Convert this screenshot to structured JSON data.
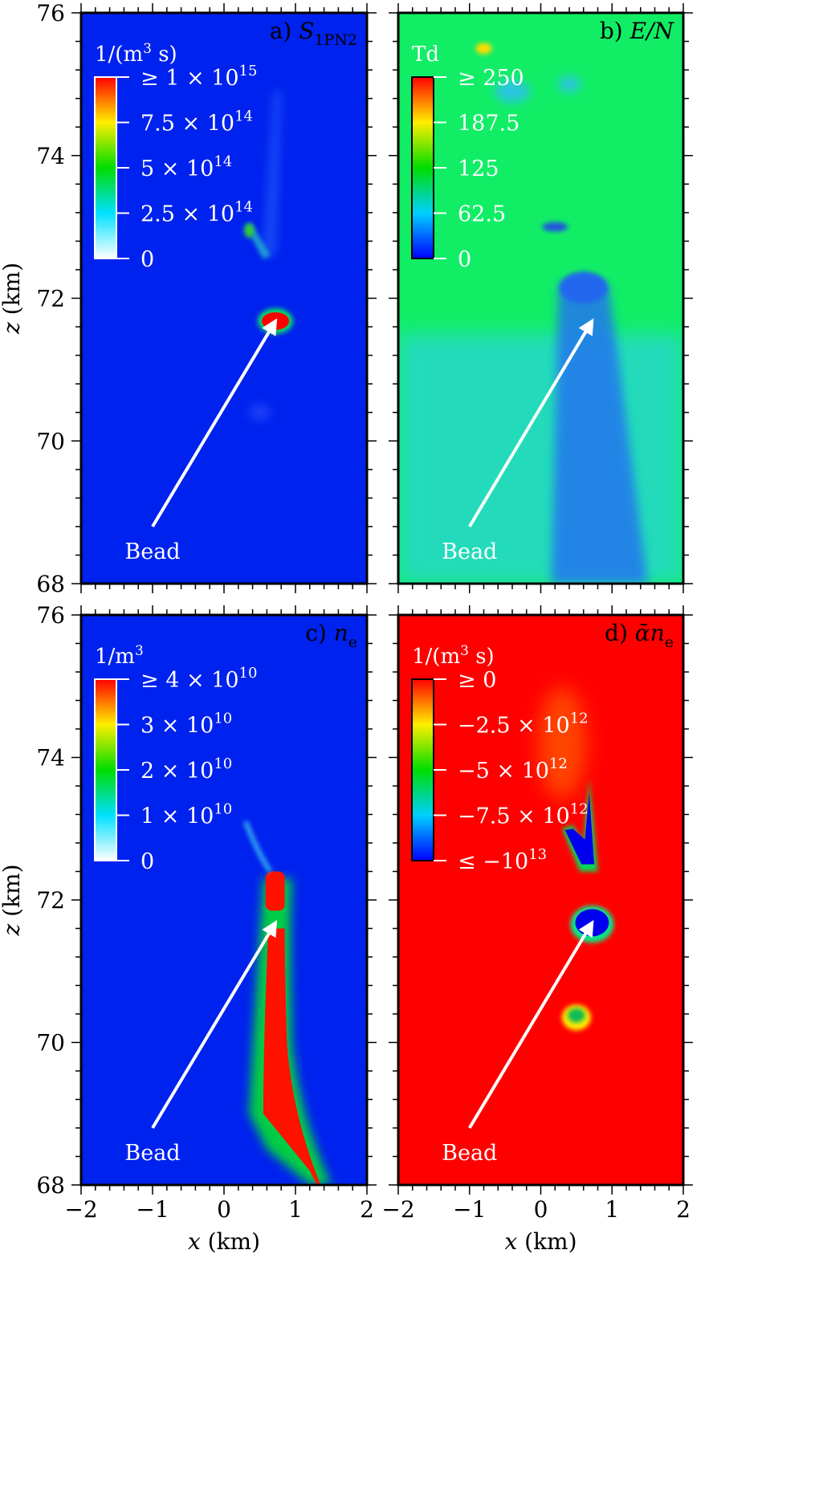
{
  "chart_data": [
    {
      "type": "heatmap",
      "panel": "a",
      "title": "a) S1PN2",
      "title_parts": {
        "prefix": "a) ",
        "sym": "S",
        "sub": "1PN2"
      },
      "background_color": "#0022ee",
      "xlim": [
        -2,
        2
      ],
      "ylim": [
        68,
        76
      ],
      "xlabel": "",
      "ylabel": "z (km)",
      "ylabel_parts": {
        "sym": "z",
        "rest": " (km)"
      },
      "xticks": [],
      "yticks": [
        "68",
        "70",
        "72",
        "74",
        "76"
      ],
      "colorbar": {
        "unit": "1/(m3 s)",
        "unit_parts": {
          "base": "1/(m",
          "sup": "3",
          "end": " s)"
        },
        "labels": [
          {
            "parts": [
              "≥ 1 × 10",
              "15"
            ]
          },
          {
            "parts": [
              "7.5 × 10",
              "14"
            ]
          },
          {
            "parts": [
              "5 × 10",
              "14"
            ]
          },
          {
            "parts": [
              "2.5 × 10",
              "14"
            ]
          },
          {
            "parts": [
              "0",
              ""
            ]
          }
        ],
        "colors": [
          "#ffffff",
          "#00e0ff",
          "#00dd00",
          "#ffee00",
          "#ff0000"
        ]
      },
      "features": [
        {
          "x": 0.72,
          "z": 71.68,
          "value": "saturated (bead)"
        },
        {
          "x": 0.35,
          "z": 72.9,
          "value": "weak streak"
        }
      ],
      "annotation": {
        "text": "Bead",
        "from": [
          -1.0,
          68.8
        ],
        "to": [
          0.72,
          71.68
        ]
      }
    },
    {
      "type": "heatmap",
      "panel": "b",
      "title": "b) E/N",
      "title_parts": {
        "prefix": "b) ",
        "sym": "E/N"
      },
      "background_color": "#11ee66",
      "xlim": [
        -2,
        2
      ],
      "ylim": [
        68,
        76
      ],
      "xlabel": "",
      "ylabel": "",
      "xticks": [],
      "yticks": [],
      "colorbar": {
        "unit": "Td",
        "labels": [
          {
            "parts": [
              "≥ 250",
              ""
            ]
          },
          {
            "parts": [
              "187.5",
              ""
            ]
          },
          {
            "parts": [
              "125",
              ""
            ]
          },
          {
            "parts": [
              "62.5",
              ""
            ]
          },
          {
            "parts": [
              "0",
              ""
            ]
          }
        ],
        "colors": [
          "#0000ff",
          "#00d0ff",
          "#00dd00",
          "#ffee00",
          "#ff0000"
        ]
      },
      "features": [
        {
          "x": 0.6,
          "z": 70.0,
          "value": "low field channel"
        },
        {
          "x": 0.6,
          "z": 72.2,
          "value": "low field cap"
        }
      ],
      "annotation": {
        "text": "Bead",
        "from": [
          -1.0,
          68.8
        ],
        "to": [
          0.72,
          71.68
        ]
      }
    },
    {
      "type": "heatmap",
      "panel": "c",
      "title": "c) ne",
      "title_parts": {
        "prefix": "c) ",
        "sym": "n",
        "sub": "e"
      },
      "background_color": "#0022ee",
      "xlim": [
        -2,
        2
      ],
      "ylim": [
        68,
        76
      ],
      "xlabel": "x (km)",
      "ylabel": "z (km)",
      "xlabel_parts": {
        "sym": "x",
        "rest": " (km)"
      },
      "ylabel_parts": {
        "sym": "z",
        "rest": " (km)"
      },
      "xticks": [
        "−2",
        "−1",
        "0",
        "1",
        "2"
      ],
      "yticks": [
        "68",
        "70",
        "72",
        "74",
        "76"
      ],
      "colorbar": {
        "unit": "1/m3",
        "unit_parts": {
          "base": "1/m",
          "sup": "3",
          "end": ""
        },
        "labels": [
          {
            "parts": [
              "≥ 4 × 10",
              "10"
            ]
          },
          {
            "parts": [
              "3 × 10",
              "10"
            ]
          },
          {
            "parts": [
              "2 × 10",
              "10"
            ]
          },
          {
            "parts": [
              "1 × 10",
              "10"
            ]
          },
          {
            "parts": [
              "0",
              ""
            ]
          }
        ],
        "colors": [
          "#ffffff",
          "#00e0ff",
          "#00dd00",
          "#ffee00",
          "#ff0000"
        ]
      },
      "features": [
        {
          "x": 0.75,
          "z": 70.5,
          "value": "saturated channel"
        },
        {
          "x": 0.75,
          "z": 72.0,
          "value": "saturated bead"
        }
      ],
      "annotation": {
        "text": "Bead",
        "from": [
          -1.0,
          68.8
        ],
        "to": [
          0.72,
          71.68
        ]
      }
    },
    {
      "type": "heatmap",
      "panel": "d",
      "title": "d) ᾱne",
      "title_parts": {
        "prefix": "d) ",
        "sym": "ᾱn",
        "sub": "e"
      },
      "background_color": "#ff0000",
      "xlim": [
        -2,
        2
      ],
      "ylim": [
        68,
        76
      ],
      "xlabel": "x (km)",
      "ylabel": "",
      "xlabel_parts": {
        "sym": "x",
        "rest": " (km)"
      },
      "xticks": [
        "−2",
        "−1",
        "0",
        "1",
        "2"
      ],
      "yticks": [],
      "colorbar": {
        "unit": "1/(m3 s)",
        "unit_parts": {
          "base": "1/(m",
          "sup": "3",
          "end": " s)"
        },
        "labels": [
          {
            "parts": [
              "≥ 0",
              ""
            ]
          },
          {
            "parts": [
              "−2.5 × 10",
              "12"
            ]
          },
          {
            "parts": [
              "−5 × 10",
              "12"
            ]
          },
          {
            "parts": [
              "−7.5 × 10",
              "12"
            ]
          },
          {
            "parts": [
              "≤ −10",
              "13"
            ]
          }
        ],
        "colors": [
          "#0000ff",
          "#00d0ff",
          "#00dd00",
          "#ffee00",
          "#ff0000"
        ]
      },
      "features": [
        {
          "x": 0.72,
          "z": 71.68,
          "value": "strongly negative (bead)"
        },
        {
          "x": 0.6,
          "z": 72.8,
          "value": "strongly negative streak"
        },
        {
          "x": 0.5,
          "z": 70.4,
          "value": "moderately negative"
        }
      ],
      "annotation": {
        "text": "Bead",
        "from": [
          -1.0,
          68.8
        ],
        "to": [
          0.72,
          71.68
        ]
      }
    }
  ]
}
